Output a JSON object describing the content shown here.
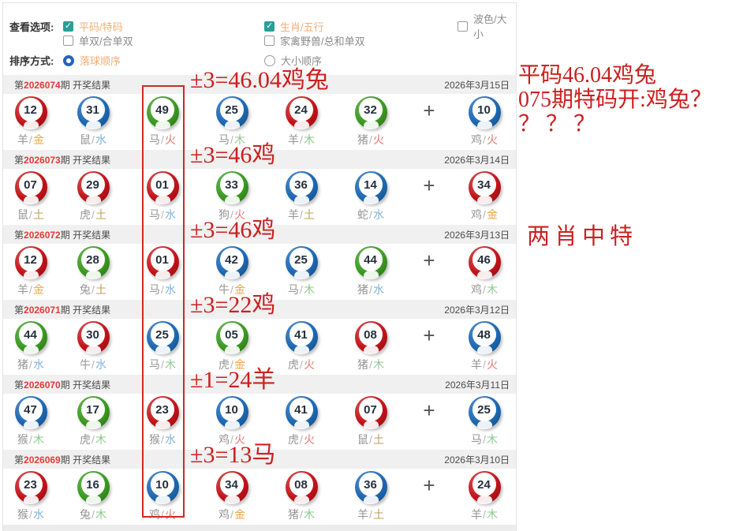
{
  "filters": {
    "view_label": "查看选项:",
    "sort_label": "排序方式:",
    "row1": [
      {
        "label": "平码/特码",
        "checked": true
      },
      {
        "label": "生肖/五行",
        "checked": true
      },
      {
        "label": "波色/大小",
        "checked": false
      }
    ],
    "row2": [
      {
        "label": "单双/合单双",
        "checked": false
      },
      {
        "label": "家禽野兽/总和单双",
        "checked": false
      }
    ],
    "radios": [
      {
        "label": "落球顺序",
        "selected": true
      },
      {
        "label": "大小顺序",
        "selected": false
      }
    ]
  },
  "labels": {
    "issue_prefix": "第",
    "issue_suffix": "期 开奖结果",
    "plus": "+"
  },
  "draws": [
    {
      "issue": "2026074",
      "date": "2026年3月15日",
      "annotation": "±3=46.04鸡兔",
      "balls": [
        {
          "n": "12",
          "c": "red",
          "z": "羊",
          "e": "金"
        },
        {
          "n": "31",
          "c": "blue",
          "z": "鼠",
          "e": "水"
        },
        {
          "n": "49",
          "c": "green",
          "z": "马",
          "e": "火"
        },
        {
          "n": "25",
          "c": "blue",
          "z": "马",
          "e": "木"
        },
        {
          "n": "24",
          "c": "red",
          "z": "羊",
          "e": "木"
        },
        {
          "n": "32",
          "c": "green",
          "z": "猪",
          "e": "火"
        }
      ],
      "special": {
        "n": "10",
        "c": "blue",
        "z": "鸡",
        "e": "火"
      }
    },
    {
      "issue": "2026073",
      "date": "2026年3月14日",
      "annotation": "±3=46鸡",
      "balls": [
        {
          "n": "07",
          "c": "red",
          "z": "鼠",
          "e": "土"
        },
        {
          "n": "29",
          "c": "red",
          "z": "虎",
          "e": "土"
        },
        {
          "n": "01",
          "c": "red",
          "z": "马",
          "e": "水"
        },
        {
          "n": "33",
          "c": "green",
          "z": "狗",
          "e": "火"
        },
        {
          "n": "36",
          "c": "blue",
          "z": "羊",
          "e": "土"
        },
        {
          "n": "14",
          "c": "blue",
          "z": "蛇",
          "e": "水"
        }
      ],
      "special": {
        "n": "34",
        "c": "red",
        "z": "鸡",
        "e": "金"
      }
    },
    {
      "issue": "2026072",
      "date": "2026年3月13日",
      "annotation": "±3=46鸡",
      "balls": [
        {
          "n": "12",
          "c": "red",
          "z": "羊",
          "e": "金"
        },
        {
          "n": "28",
          "c": "green",
          "z": "兔",
          "e": "土"
        },
        {
          "n": "01",
          "c": "red",
          "z": "马",
          "e": "水"
        },
        {
          "n": "42",
          "c": "blue",
          "z": "牛",
          "e": "金"
        },
        {
          "n": "25",
          "c": "blue",
          "z": "马",
          "e": "木"
        },
        {
          "n": "44",
          "c": "green",
          "z": "猪",
          "e": "水"
        }
      ],
      "special": {
        "n": "46",
        "c": "red",
        "z": "鸡",
        "e": "木"
      }
    },
    {
      "issue": "2026071",
      "date": "2026年3月12日",
      "annotation": "±3=22鸡",
      "balls": [
        {
          "n": "44",
          "c": "green",
          "z": "猪",
          "e": "水"
        },
        {
          "n": "30",
          "c": "red",
          "z": "牛",
          "e": "水"
        },
        {
          "n": "25",
          "c": "blue",
          "z": "马",
          "e": "木"
        },
        {
          "n": "05",
          "c": "green",
          "z": "虎",
          "e": "金"
        },
        {
          "n": "41",
          "c": "blue",
          "z": "虎",
          "e": "火"
        },
        {
          "n": "08",
          "c": "red",
          "z": "猪",
          "e": "木"
        }
      ],
      "special": {
        "n": "48",
        "c": "blue",
        "z": "羊",
        "e": "火"
      }
    },
    {
      "issue": "2026070",
      "date": "2026年3月11日",
      "annotation": "±1=24羊",
      "balls": [
        {
          "n": "47",
          "c": "blue",
          "z": "猴",
          "e": "木"
        },
        {
          "n": "17",
          "c": "green",
          "z": "虎",
          "e": "木"
        },
        {
          "n": "23",
          "c": "red",
          "z": "猴",
          "e": "水"
        },
        {
          "n": "10",
          "c": "blue",
          "z": "鸡",
          "e": "火"
        },
        {
          "n": "41",
          "c": "blue",
          "z": "虎",
          "e": "火"
        },
        {
          "n": "07",
          "c": "red",
          "z": "鼠",
          "e": "土"
        }
      ],
      "special": {
        "n": "25",
        "c": "blue",
        "z": "马",
        "e": "木"
      }
    },
    {
      "issue": "2026069",
      "date": "2026年3月10日",
      "annotation": "±3=13马",
      "balls": [
        {
          "n": "23",
          "c": "red",
          "z": "猴",
          "e": "水"
        },
        {
          "n": "16",
          "c": "green",
          "z": "兔",
          "e": "木"
        },
        {
          "n": "10",
          "c": "blue",
          "z": "鸡",
          "e": "火"
        },
        {
          "n": "34",
          "c": "red",
          "z": "鸡",
          "e": "金"
        },
        {
          "n": "08",
          "c": "red",
          "z": "猪",
          "e": "木"
        },
        {
          "n": "36",
          "c": "blue",
          "z": "羊",
          "e": "土"
        }
      ],
      "special": {
        "n": "24",
        "c": "red",
        "z": "羊",
        "e": "木"
      }
    }
  ],
  "side_notes": {
    "line1": "平码46.04鸡兔",
    "line2": "075期特码开:鸡兔？",
    "line3": "？ ？ ？",
    "note2": "两肖中特"
  },
  "colors": {
    "ball": {
      "red": "#c41219",
      "blue": "#1c69b4",
      "green": "#3a9b1f"
    },
    "element": {
      "金": "#efa54e",
      "水": "#7fb3dd",
      "火": "#e8776e",
      "木": "#8cc98c",
      "土": "#bfa05a"
    },
    "annotation_red": "#cc2020",
    "issue_red": "#e4393c",
    "checkbox_teal": "#2b9e98",
    "radio_blue": "#2961c4"
  }
}
